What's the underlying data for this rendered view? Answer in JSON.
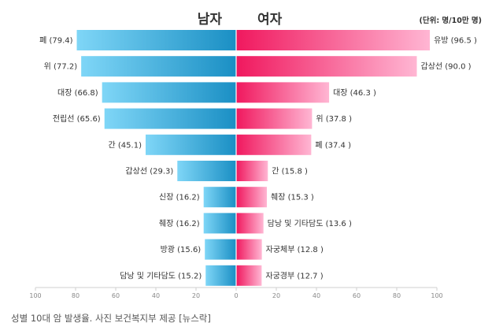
{
  "chart_data": {
    "type": "bar",
    "orientation": "horizontal-butterfly",
    "title_left": "남자",
    "title_right": "여자",
    "unit_label": "(단위: 명/10만 명)",
    "xlim": [
      -100,
      100
    ],
    "ticks": [
      100,
      80,
      60,
      40,
      20,
      0,
      20,
      40,
      60,
      80,
      100
    ],
    "series": [
      {
        "name": "남자",
        "labels": [
          "폐 (79.4)",
          "위 (77.2)",
          "대장 (66.8)",
          "전립선 (65.6)",
          "간 (45.1)",
          "갑상선 (29.3)",
          "신장 (16.2)",
          "췌장 (16.2)",
          "방광 (15.6)",
          "담낭 및 기타담도 (15.2)"
        ],
        "categories": [
          "폐",
          "위",
          "대장",
          "전립선",
          "간",
          "갑상선",
          "신장",
          "췌장",
          "방광",
          "담낭 및 기타담도"
        ],
        "values": [
          79.4,
          77.2,
          66.8,
          65.6,
          45.1,
          29.3,
          16.2,
          16.2,
          15.6,
          15.2
        ],
        "color_light": "#7fd6f7",
        "color_dark": "#1a8fc4"
      },
      {
        "name": "여자",
        "labels": [
          "유방 (96.5 )",
          "갑상선 (90.0 )",
          "대장 (46.3 )",
          "위 (37.8 )",
          "폐 (37.4 )",
          "간 (15.8 )",
          "췌장 (15.3 )",
          "담낭 및 기타담도 (13.6 )",
          "자궁체부 (12.8 )",
          "자궁경부 (12.7 )"
        ],
        "categories": [
          "유방",
          "갑상선",
          "대장",
          "위",
          "폐",
          "간",
          "췌장",
          "담낭 및 기타담도",
          "자궁체부",
          "자궁경부"
        ],
        "values": [
          96.5,
          90.0,
          46.3,
          37.8,
          37.4,
          15.8,
          15.3,
          13.6,
          12.8,
          12.7
        ],
        "color_dark": "#f0185e",
        "color_light": "#ffb6d3"
      }
    ]
  },
  "caption": "성별 10대 암 발생율. 사진 보건복지부 제공 [뉴스락]"
}
